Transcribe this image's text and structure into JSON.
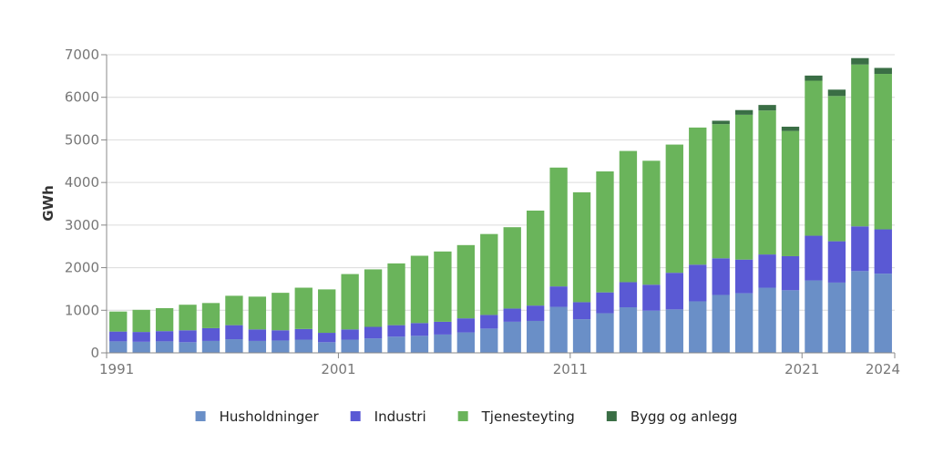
{
  "chart_data": {
    "type": "bar",
    "stacked": true,
    "title": "",
    "xlabel": "",
    "ylabel": "GWh",
    "ylim": [
      0,
      7000
    ],
    "yticks": [
      0,
      1000,
      2000,
      3000,
      4000,
      5000,
      6000,
      7000
    ],
    "ytick_labels": [
      "0",
      "1000",
      "2000",
      "3000",
      "4000",
      "5000",
      "6000",
      "7000"
    ],
    "grid": "horizontal",
    "legend": "bottom",
    "categories": [
      1991,
      1992,
      1993,
      1994,
      1995,
      1996,
      1997,
      1998,
      1999,
      2000,
      2001,
      2002,
      2003,
      2004,
      2005,
      2006,
      2007,
      2008,
      2009,
      2010,
      2011,
      2012,
      2013,
      2014,
      2015,
      2016,
      2017,
      2018,
      2019,
      2020,
      2021,
      2022,
      2023,
      2024
    ],
    "xtick_labels": [
      "1991",
      "2001",
      "2011",
      "2021",
      "2024"
    ],
    "series": [
      {
        "name": "Husholdninger",
        "color": "#6a8fc7",
        "values": [
          270,
          260,
          270,
          250,
          280,
          320,
          280,
          290,
          310,
          250,
          310,
          340,
          380,
          400,
          430,
          480,
          570,
          730,
          750,
          1080,
          790,
          930,
          1070,
          990,
          1020,
          1210,
          1360,
          1400,
          1530,
          1470,
          1700,
          1650,
          1920,
          1860
        ]
      },
      {
        "name": "Industri",
        "color": "#5a59d4",
        "values": [
          230,
          230,
          240,
          280,
          300,
          330,
          270,
          240,
          250,
          220,
          240,
          270,
          270,
          300,
          300,
          330,
          320,
          310,
          360,
          480,
          400,
          490,
          590,
          610,
          860,
          860,
          860,
          790,
          780,
          800,
          1050,
          970,
          1050,
          1040
        ]
      },
      {
        "name": "Tjenesteyting",
        "color": "#6ab45b",
        "values": [
          470,
          520,
          540,
          600,
          590,
          690,
          770,
          880,
          970,
          1020,
          1300,
          1350,
          1450,
          1580,
          1650,
          1720,
          1900,
          1910,
          2230,
          2790,
          2580,
          2840,
          3080,
          2910,
          3010,
          3220,
          3150,
          3400,
          3380,
          2940,
          3640,
          3410,
          3800,
          3650
        ]
      },
      {
        "name": "Bygg og anlegg",
        "color": "#3a6e45",
        "values": [
          0,
          0,
          0,
          0,
          0,
          0,
          0,
          0,
          0,
          0,
          0,
          0,
          0,
          0,
          0,
          0,
          0,
          0,
          0,
          0,
          0,
          0,
          0,
          0,
          0,
          0,
          80,
          110,
          130,
          100,
          120,
          150,
          150,
          140
        ]
      }
    ]
  }
}
